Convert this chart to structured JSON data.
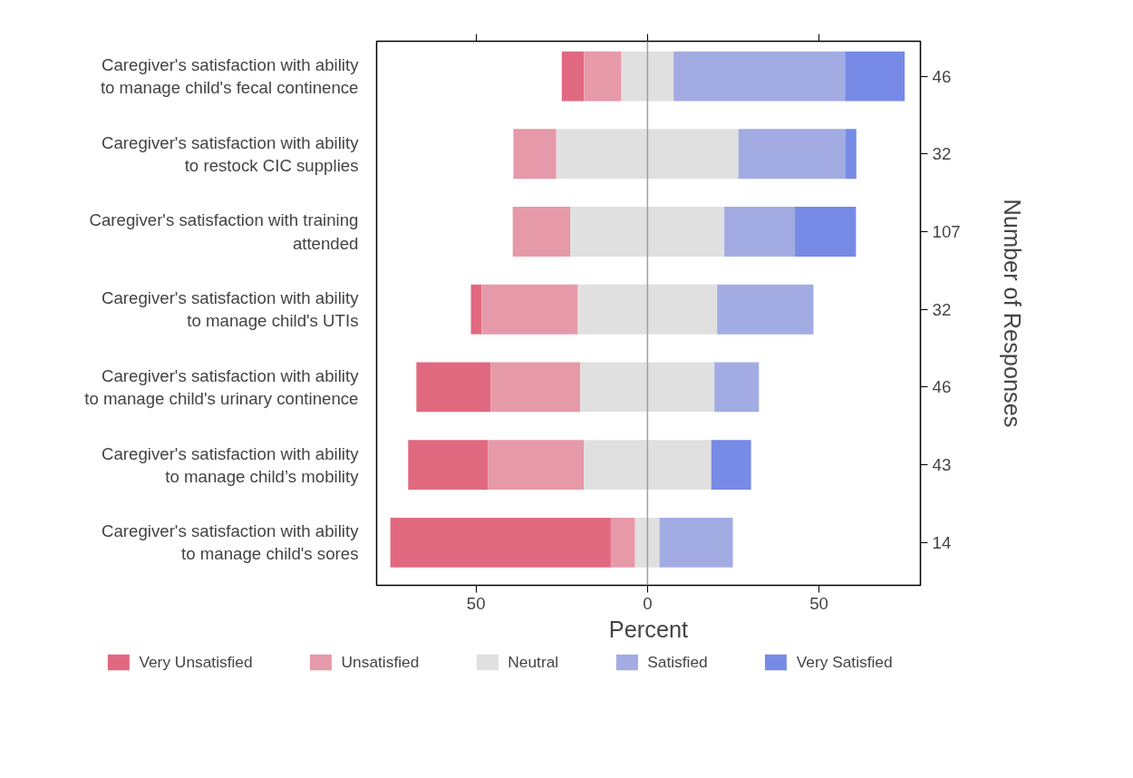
{
  "chart_data": {
    "type": "bar",
    "orientation": "horizontal",
    "categories": [
      "Caregiver's satisfaction with ability\nto manage child's fecal continence",
      "Caregiver's satisfaction with ability\nto restock CIC supplies",
      "Caregiver's satisfaction with training\nattended",
      "Caregiver's satisfaction with ability\nto manage child's UTIs",
      "Caregiver's satisfaction with ability\nto manage child's urinary continence",
      "Caregiver's satisfaction with ability\nto manage child’s mobility",
      "Caregiver's satisfaction with ability\nto manage child's sores"
    ],
    "y2_categories": [
      "46",
      "32",
      "107",
      "32",
      "46",
      "43",
      "14"
    ],
    "series": [
      {
        "name": "Very Unsatisfied",
        "color": "#e0697f",
        "base": [
          -25.0,
          null,
          null,
          -51.5,
          -67.4,
          -69.8,
          -75.0
        ],
        "values": [
          6.5,
          null,
          null,
          3.1,
          21.7,
          23.3,
          64.3
        ]
      },
      {
        "name": "Unsatisfied",
        "color": "#e699a8",
        "base": [
          -18.5,
          -39.1,
          -39.3,
          -48.4,
          -45.7,
          -46.5,
          -10.7
        ],
        "values": [
          10.9,
          12.5,
          16.8,
          28.1,
          26.1,
          27.9,
          7.1
        ]
      },
      {
        "name": "Neutral",
        "color": "#e0e0e0",
        "base": [
          -7.6,
          -26.6,
          -22.5,
          -20.3,
          -19.6,
          -18.6,
          -3.6
        ],
        "values": [
          15.2,
          53.1,
          44.9,
          40.6,
          39.1,
          37.2,
          7.1
        ]
      },
      {
        "name": "Satisfied",
        "color": "#a2ace3",
        "base": [
          7.6,
          26.5,
          22.4,
          20.3,
          19.5,
          null,
          3.5
        ],
        "values": [
          50.0,
          31.3,
          20.6,
          28.1,
          13.0,
          null,
          21.4
        ]
      },
      {
        "name": "Very Satisfied",
        "color": "#778ae6",
        "base": [
          57.6,
          57.8,
          43.0,
          null,
          null,
          18.6,
          null
        ],
        "values": [
          17.4,
          3.1,
          17.8,
          null,
          null,
          11.6,
          null
        ]
      }
    ],
    "xlabel": "Percent",
    "y2label": "Number of Responses",
    "xlim": [
      -79,
      79.6
    ],
    "xticks": [
      {
        "value": -50,
        "label": "50"
      },
      0,
      50
    ],
    "ref_lines": [
      {
        "axis": "x",
        "value": 0,
        "color": "#a0a0a0"
      }
    ],
    "grid": false,
    "legend": "bottom"
  }
}
